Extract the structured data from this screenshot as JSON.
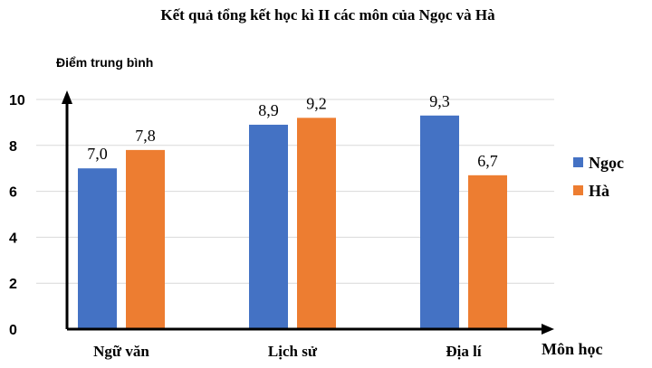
{
  "chart_data": {
    "type": "bar",
    "title": "Kết quả tổng kết học kì II các môn của Ngọc và Hà",
    "ylabel": "Điểm trung bình",
    "xlabel": "Môn học",
    "categories": [
      "Ngữ văn",
      "Lịch sử",
      "Địa lí"
    ],
    "series": [
      {
        "name": "Ngọc",
        "values": [
          7.0,
          8.9,
          9.3
        ],
        "labels": [
          "7,0",
          "8,9",
          "9,3"
        ],
        "color": "#4472C4"
      },
      {
        "name": "Hà",
        "values": [
          7.8,
          9.2,
          6.7
        ],
        "labels": [
          "7,8",
          "9,2",
          "6,7"
        ],
        "color": "#ED7D31"
      }
    ],
    "ylim": [
      0,
      10
    ],
    "yticks": [
      "0",
      "2",
      "4",
      "6",
      "8",
      "10"
    ],
    "grid": true,
    "legend": "right"
  }
}
